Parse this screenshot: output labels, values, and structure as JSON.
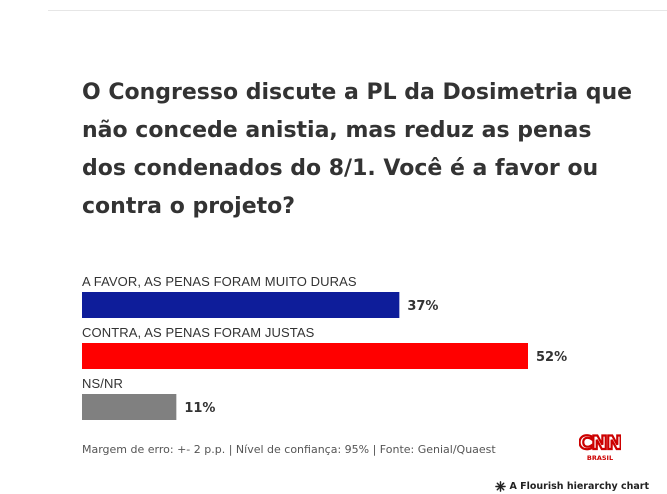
{
  "title": "O Congresso discute a PL da Dosimetria que não concede anistia, mas reduz as penas dos condenados do 8/1. Você é a favor ou contra o projeto?",
  "chart_data": {
    "type": "bar",
    "orientation": "horizontal",
    "categories": [
      "A FAVOR, AS PENAS FORAM MUITO DURAS",
      "CONTRA, AS PENAS FORAM JUSTAS",
      "NS/NR"
    ],
    "values": [
      37,
      52,
      11
    ],
    "value_labels": [
      "37%",
      "52%",
      "11%"
    ],
    "colors": [
      "#0e1d9a",
      "#ff0000",
      "#808080"
    ],
    "xlim": [
      0,
      52
    ],
    "grid": false,
    "legend": "none"
  },
  "footer": {
    "source": "Margem de erro: +- 2 p.p. | Nível de confiança: 95% | Fonte: Genial/Quaest",
    "logo_text": "CNN",
    "logo_subtext": "BRASIL",
    "flourish_label": "A Flourish hierarchy chart"
  },
  "colors": {
    "logo_red": "#cc0000",
    "text": "#333333"
  },
  "icons": {
    "flourish": "flourish-asterisk-icon"
  }
}
